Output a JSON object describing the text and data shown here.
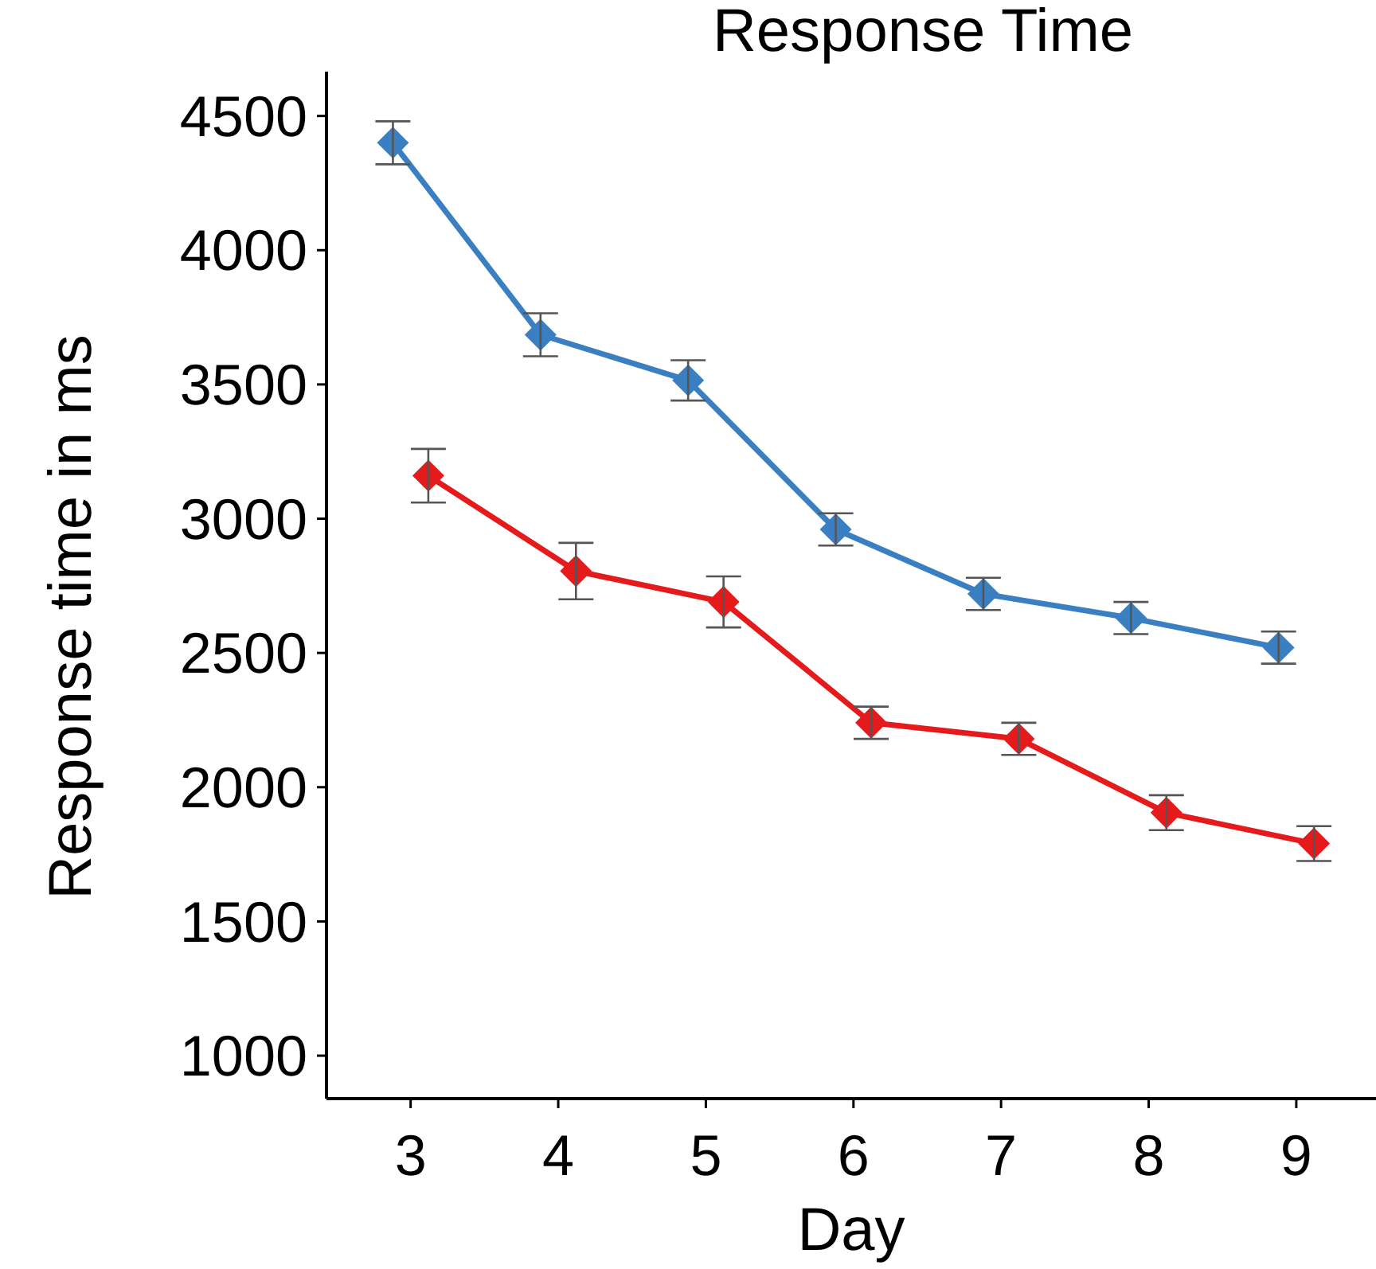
{
  "chart_data": {
    "type": "line",
    "title": "Response Time",
    "xlabel": "Day",
    "ylabel": "Response time in ms",
    "series": [
      {
        "color": "#3a7fc1",
        "x": [
          2.88,
          3.88,
          4.88,
          5.88,
          6.88,
          7.88,
          8.88
        ],
        "values": [
          4400,
          3685,
          3515,
          2960,
          2720,
          2630,
          2520
        ],
        "errors": [
          80,
          80,
          75,
          60,
          60,
          60,
          60
        ]
      },
      {
        "color": "#e41a1c",
        "x": [
          3.12,
          4.12,
          5.12,
          6.12,
          7.12,
          8.12,
          9.12
        ],
        "values": [
          3160,
          2805,
          2690,
          2240,
          2180,
          1905,
          1790
        ],
        "errors": [
          100,
          105,
          95,
          60,
          60,
          65,
          65
        ]
      }
    ],
    "xlim": [
      2.43,
      9.54
    ],
    "ylim": [
      840,
      4665
    ],
    "xticks": [
      3,
      4,
      5,
      6,
      7,
      8,
      9
    ],
    "yticks": [
      1000,
      1500,
      2000,
      2500,
      3000,
      3500,
      4000,
      4500
    ],
    "marker": "diamond",
    "line_style": "solid",
    "grid": false
  }
}
